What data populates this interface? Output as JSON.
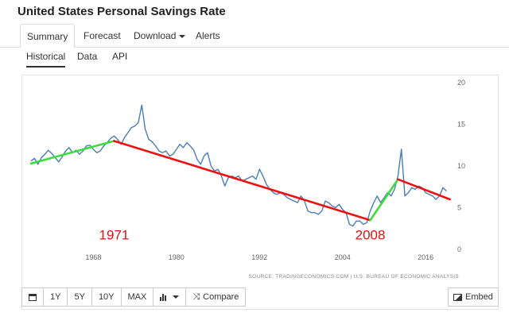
{
  "page": {
    "title": "United States Personal Savings Rate"
  },
  "nav": {
    "tabs": [
      {
        "label": "Summary",
        "active": true
      },
      {
        "label": "Forecast",
        "active": false
      },
      {
        "label": "Download",
        "active": false,
        "dropdown": true
      },
      {
        "label": "Alerts",
        "active": false
      }
    ]
  },
  "subnav": {
    "tabs": [
      {
        "label": "Historical",
        "active": true
      },
      {
        "label": "Data",
        "active": false
      },
      {
        "label": "API",
        "active": false
      }
    ]
  },
  "chart_data": {
    "type": "line",
    "title": "",
    "xlabel": "",
    "ylabel": "",
    "xlim": [
      1959,
      2020
    ],
    "ylim": [
      0,
      20
    ],
    "x_ticks": [
      "1968",
      "1980",
      "1992",
      "2004",
      "2016"
    ],
    "y_ticks": [
      "0",
      "5",
      "10",
      "15",
      "20"
    ],
    "grid": false,
    "line_color": "#4a7db5",
    "series": [
      {
        "values": [
          [
            1959.0,
            10.6
          ],
          [
            1959.5,
            10.9
          ],
          [
            1960.0,
            10.2
          ],
          [
            1960.5,
            11.0
          ],
          [
            1961.0,
            11.4
          ],
          [
            1961.5,
            11.9
          ],
          [
            1962.0,
            11.5
          ],
          [
            1962.5,
            11.0
          ],
          [
            1963.0,
            10.5
          ],
          [
            1963.5,
            11.1
          ],
          [
            1964.0,
            11.8
          ],
          [
            1964.5,
            12.2
          ],
          [
            1965.0,
            11.6
          ],
          [
            1965.5,
            11.9
          ],
          [
            1966.0,
            11.4
          ],
          [
            1966.5,
            11.8
          ],
          [
            1967.0,
            12.4
          ],
          [
            1967.5,
            12.5
          ],
          [
            1968.0,
            12.0
          ],
          [
            1968.5,
            11.6
          ],
          [
            1969.0,
            11.8
          ],
          [
            1969.5,
            12.4
          ],
          [
            1970.0,
            12.8
          ],
          [
            1970.5,
            13.3
          ],
          [
            1971.0,
            13.6
          ],
          [
            1971.5,
            13.2
          ],
          [
            1972.0,
            12.6
          ],
          [
            1972.5,
            13.4
          ],
          [
            1973.0,
            14.0
          ],
          [
            1973.5,
            14.6
          ],
          [
            1974.0,
            14.8
          ],
          [
            1974.5,
            15.2
          ],
          [
            1975.0,
            17.3
          ],
          [
            1975.5,
            14.4
          ],
          [
            1976.0,
            13.2
          ],
          [
            1976.5,
            12.9
          ],
          [
            1977.0,
            12.4
          ],
          [
            1977.5,
            11.8
          ],
          [
            1978.0,
            11.6
          ],
          [
            1978.5,
            11.8
          ],
          [
            1979.0,
            11.2
          ],
          [
            1979.5,
            11.4
          ],
          [
            1980.0,
            12.0
          ],
          [
            1980.5,
            12.6
          ],
          [
            1981.0,
            12.2
          ],
          [
            1981.5,
            12.8
          ],
          [
            1982.0,
            12.4
          ],
          [
            1982.5,
            11.9
          ],
          [
            1983.0,
            10.8
          ],
          [
            1983.5,
            10.2
          ],
          [
            1984.0,
            11.2
          ],
          [
            1984.5,
            11.6
          ],
          [
            1985.0,
            10.0
          ],
          [
            1985.5,
            9.4
          ],
          [
            1986.0,
            9.6
          ],
          [
            1986.5,
            8.8
          ],
          [
            1987.0,
            7.6
          ],
          [
            1987.5,
            8.6
          ],
          [
            1988.0,
            8.8
          ],
          [
            1988.5,
            8.6
          ],
          [
            1989.0,
            8.8
          ],
          [
            1989.5,
            8.2
          ],
          [
            1990.0,
            8.4
          ],
          [
            1990.5,
            8.6
          ],
          [
            1991.0,
            8.8
          ],
          [
            1991.5,
            8.4
          ],
          [
            1992.0,
            9.6
          ],
          [
            1992.5,
            8.8
          ],
          [
            1993.0,
            7.8
          ],
          [
            1993.5,
            7.2
          ],
          [
            1994.0,
            6.8
          ],
          [
            1994.5,
            6.6
          ],
          [
            1995.0,
            6.8
          ],
          [
            1995.5,
            6.6
          ],
          [
            1996.0,
            6.2
          ],
          [
            1996.5,
            6.0
          ],
          [
            1997.0,
            5.8
          ],
          [
            1997.5,
            5.6
          ],
          [
            1998.0,
            6.4
          ],
          [
            1998.5,
            5.8
          ],
          [
            1999.0,
            4.6
          ],
          [
            1999.5,
            4.4
          ],
          [
            2000.0,
            4.4
          ],
          [
            2000.5,
            4.2
          ],
          [
            2001.0,
            4.6
          ],
          [
            2001.5,
            5.8
          ],
          [
            2002.0,
            5.6
          ],
          [
            2002.5,
            5.2
          ],
          [
            2003.0,
            5.0
          ],
          [
            2003.5,
            5.4
          ],
          [
            2004.0,
            4.8
          ],
          [
            2004.5,
            4.4
          ],
          [
            2005.0,
            3.0
          ],
          [
            2005.5,
            2.8
          ],
          [
            2006.0,
            3.4
          ],
          [
            2006.5,
            3.4
          ],
          [
            2007.0,
            3.0
          ],
          [
            2007.5,
            3.2
          ],
          [
            2008.0,
            4.6
          ],
          [
            2008.5,
            5.6
          ],
          [
            2009.0,
            6.4
          ],
          [
            2009.5,
            5.6
          ],
          [
            2010.0,
            6.2
          ],
          [
            2010.5,
            6.8
          ],
          [
            2011.0,
            6.4
          ],
          [
            2011.5,
            7.2
          ],
          [
            2012.0,
            8.8
          ],
          [
            2012.5,
            12.0
          ],
          [
            2013.0,
            6.4
          ],
          [
            2013.5,
            6.8
          ],
          [
            2014.0,
            7.4
          ],
          [
            2014.5,
            7.2
          ],
          [
            2015.0,
            7.6
          ],
          [
            2015.5,
            7.4
          ],
          [
            2016.0,
            6.8
          ],
          [
            2016.5,
            6.6
          ],
          [
            2017.0,
            6.4
          ],
          [
            2017.5,
            6.0
          ],
          [
            2018.0,
            6.4
          ],
          [
            2018.5,
            7.4
          ],
          [
            2019.0,
            7.0
          ]
        ]
      }
    ],
    "trend_lines": [
      {
        "color": "#3ddc3d",
        "points": [
          [
            1959.0,
            10.3
          ],
          [
            1971.0,
            13.0
          ]
        ]
      },
      {
        "color": "#ee1111",
        "points": [
          [
            1971.0,
            13.0
          ],
          [
            2008.0,
            3.5
          ]
        ]
      },
      {
        "color": "#3ddc3d",
        "points": [
          [
            2008.0,
            3.5
          ],
          [
            2012.0,
            8.4
          ]
        ]
      },
      {
        "color": "#ee1111",
        "points": [
          [
            2012.0,
            8.4
          ],
          [
            2019.5,
            6.0
          ]
        ]
      }
    ],
    "annotations": [
      {
        "text": "1971",
        "x": 1971.0,
        "y": 1.2,
        "color": "#dd1111"
      },
      {
        "text": "2008",
        "x": 2008.0,
        "y": 1.2,
        "color": "#dd1111"
      }
    ],
    "source": "SOURCE: TRADINGECONOMICS.COM | U.S. BUREAU OF ECONOMIC ANALYSIS"
  },
  "toolbar": {
    "calendar_icon": "calendar-icon",
    "range_buttons": [
      "1Y",
      "5Y",
      "10Y",
      "MAX"
    ],
    "chart_type_icon": "bar-chart-icon",
    "compare_label": "Compare",
    "embed_label": "Embed"
  }
}
